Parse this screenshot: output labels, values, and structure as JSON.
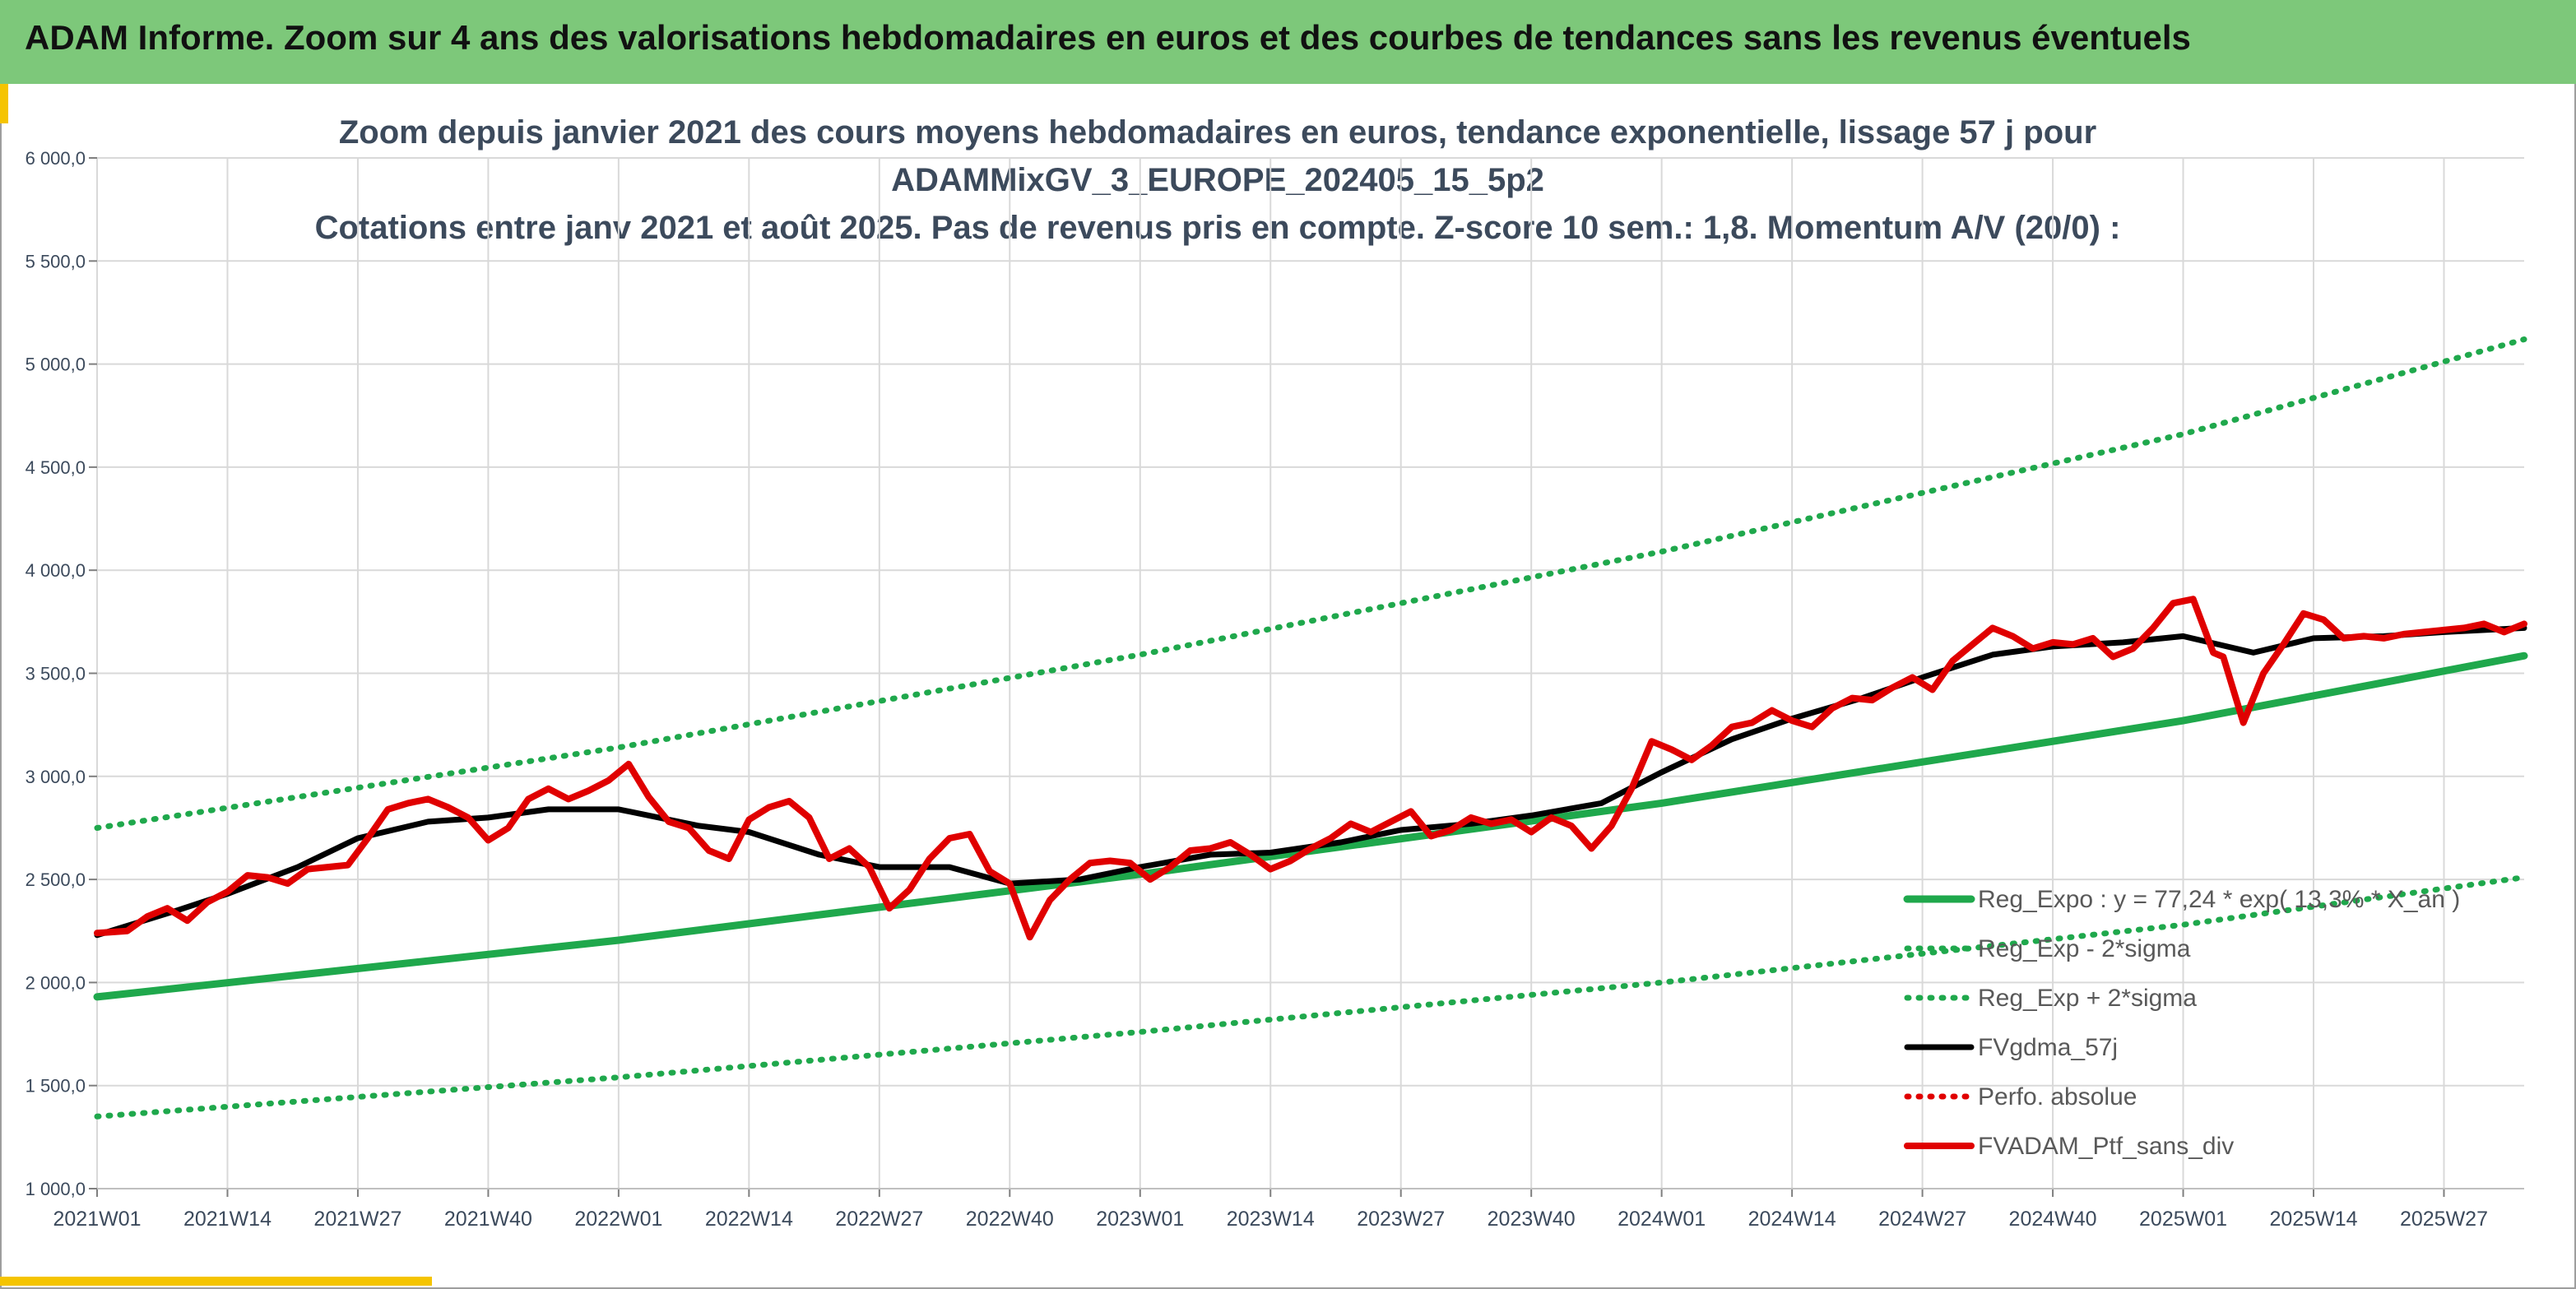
{
  "banner": {
    "title": "ADAM Informe. Zoom sur 4 ans des valorisations hebdomadaires en euros et des courbes de tendances sans les revenus éventuels"
  },
  "colors": {
    "banner_bg": "#7dc87a",
    "accent_corner": "#f5c400",
    "reg_expo": "#1fa84c",
    "sigma_bands": "#1fa84c",
    "fvgdma": "#000000",
    "perfo": "#e00000",
    "fvadam": "#e00000",
    "grid": "#d9d9d9",
    "text": "#3c4a5c"
  },
  "chart_data": {
    "type": "line",
    "title_lines": [
      "Zoom depuis janvier 2021 des cours moyens hebdomadaires en euros, tendance exponentielle, lissage 57 j pour",
      "ADAMMixGV_3_EUROPE_202405_15_5p2",
      "Cotations entre janv 2021 et août 2025. Pas de revenus pris en compte. Z-score 10 sem.: 1,8. Momentum A/V (20/0) :"
    ],
    "xlabel": "",
    "ylabel": "",
    "ylim": [
      1000,
      6000
    ],
    "y_ticks": [
      "1 000,0",
      "1 500,0",
      "2 000,0",
      "2 500,0",
      "3 000,0",
      "3 500,0",
      "4 000,0",
      "4 500,0",
      "5 000,0",
      "5 500,0",
      "6 000,0"
    ],
    "x_ticks": [
      "2021W01",
      "2021W14",
      "2021W27",
      "2021W40",
      "2022W01",
      "2022W14",
      "2022W27",
      "2022W40",
      "2023W01",
      "2023W14",
      "2023W27",
      "2023W40",
      "2024W01",
      "2024W14",
      "2024W27",
      "2024W40",
      "2025W01",
      "2025W14",
      "2025W27"
    ],
    "x_range_weeks": [
      0,
      242
    ],
    "grid": "horizontal and vertical",
    "legend_position": "bottom-right",
    "series": [
      {
        "name": "Reg_Expo : y = 77,24 * exp( 13,3% * X_an )",
        "style": "solid-green",
        "x": [
          0,
          52,
          104,
          156,
          208,
          242
        ],
        "y": [
          1930,
          2205,
          2525,
          2870,
          3270,
          3585
        ]
      },
      {
        "name": "Reg_Exp - 2*sigma",
        "style": "dotted-green",
        "x": [
          0,
          52,
          104,
          156,
          208,
          242
        ],
        "y": [
          1350,
          1540,
          1760,
          2000,
          2280,
          2510
        ]
      },
      {
        "name": "Reg_Exp + 2*sigma",
        "style": "dotted-green",
        "x": [
          0,
          52,
          104,
          156,
          208,
          242
        ],
        "y": [
          2750,
          3140,
          3590,
          4090,
          4660,
          5120
        ]
      },
      {
        "name": "FVgdma_57j",
        "style": "solid-black",
        "x": [
          0,
          8,
          13,
          20,
          26,
          33,
          39,
          45,
          52,
          60,
          65,
          72,
          78,
          85,
          91,
          98,
          104,
          111,
          117,
          124,
          130,
          137,
          143,
          150,
          156,
          163,
          169,
          176,
          182,
          189,
          195,
          202,
          208,
          215,
          221,
          228,
          234,
          242
        ],
        "y": [
          2230,
          2350,
          2430,
          2560,
          2700,
          2780,
          2800,
          2840,
          2840,
          2760,
          2730,
          2620,
          2560,
          2560,
          2480,
          2500,
          2560,
          2620,
          2630,
          2680,
          2740,
          2770,
          2810,
          2870,
          3020,
          3180,
          3280,
          3380,
          3480,
          3590,
          3630,
          3650,
          3680,
          3600,
          3670,
          3680,
          3700,
          3720
        ]
      },
      {
        "name": "Perfo. absolue",
        "style": "dotted-red",
        "x": [],
        "y": []
      },
      {
        "name": "FVADAM_Ptf_sans_div",
        "style": "solid-red",
        "x": [
          0,
          3,
          5,
          7,
          9,
          11,
          13,
          15,
          17,
          19,
          21,
          23,
          25,
          27,
          29,
          31,
          33,
          35,
          37,
          39,
          41,
          43,
          45,
          47,
          49,
          51,
          53,
          55,
          57,
          59,
          61,
          63,
          65,
          67,
          69,
          71,
          73,
          75,
          77,
          79,
          81,
          83,
          85,
          87,
          89,
          91,
          93,
          95,
          97,
          99,
          101,
          103,
          105,
          107,
          109,
          111,
          113,
          115,
          117,
          119,
          121,
          123,
          125,
          127,
          129,
          131,
          133,
          135,
          137,
          139,
          141,
          143,
          145,
          147,
          149,
          151,
          153,
          155,
          157,
          159,
          161,
          163,
          165,
          167,
          169,
          171,
          173,
          175,
          177,
          179,
          181,
          183,
          185,
          187,
          189,
          191,
          193,
          195,
          197,
          199,
          201,
          203,
          205,
          207,
          209,
          211,
          212,
          214,
          216,
          218,
          220,
          222,
          224,
          226,
          228,
          230,
          232,
          234,
          236,
          238,
          240,
          242
        ],
        "y": [
          2240,
          2250,
          2320,
          2360,
          2300,
          2390,
          2440,
          2520,
          2510,
          2480,
          2550,
          2560,
          2570,
          2700,
          2840,
          2870,
          2890,
          2850,
          2800,
          2690,
          2750,
          2890,
          2940,
          2890,
          2930,
          2980,
          3060,
          2900,
          2780,
          2750,
          2640,
          2600,
          2790,
          2850,
          2880,
          2800,
          2600,
          2650,
          2560,
          2360,
          2450,
          2600,
          2700,
          2720,
          2540,
          2480,
          2220,
          2400,
          2500,
          2580,
          2590,
          2580,
          2500,
          2560,
          2640,
          2650,
          2680,
          2620,
          2550,
          2590,
          2650,
          2700,
          2770,
          2730,
          2780,
          2830,
          2710,
          2740,
          2800,
          2770,
          2790,
          2730,
          2800,
          2760,
          2650,
          2760,
          2940,
          3170,
          3130,
          3080,
          3150,
          3240,
          3260,
          3320,
          3270,
          3240,
          3330,
          3380,
          3370,
          3430,
          3480,
          3420,
          3560,
          3640,
          3720,
          3680,
          3620,
          3650,
          3640,
          3670,
          3580,
          3620,
          3720,
          3840,
          3860,
          3600,
          3580,
          3260,
          3500,
          3640,
          3790,
          3760,
          3670,
          3680,
          3670,
          3690,
          3700,
          3710,
          3720,
          3740,
          3700,
          3740
        ]
      }
    ]
  }
}
